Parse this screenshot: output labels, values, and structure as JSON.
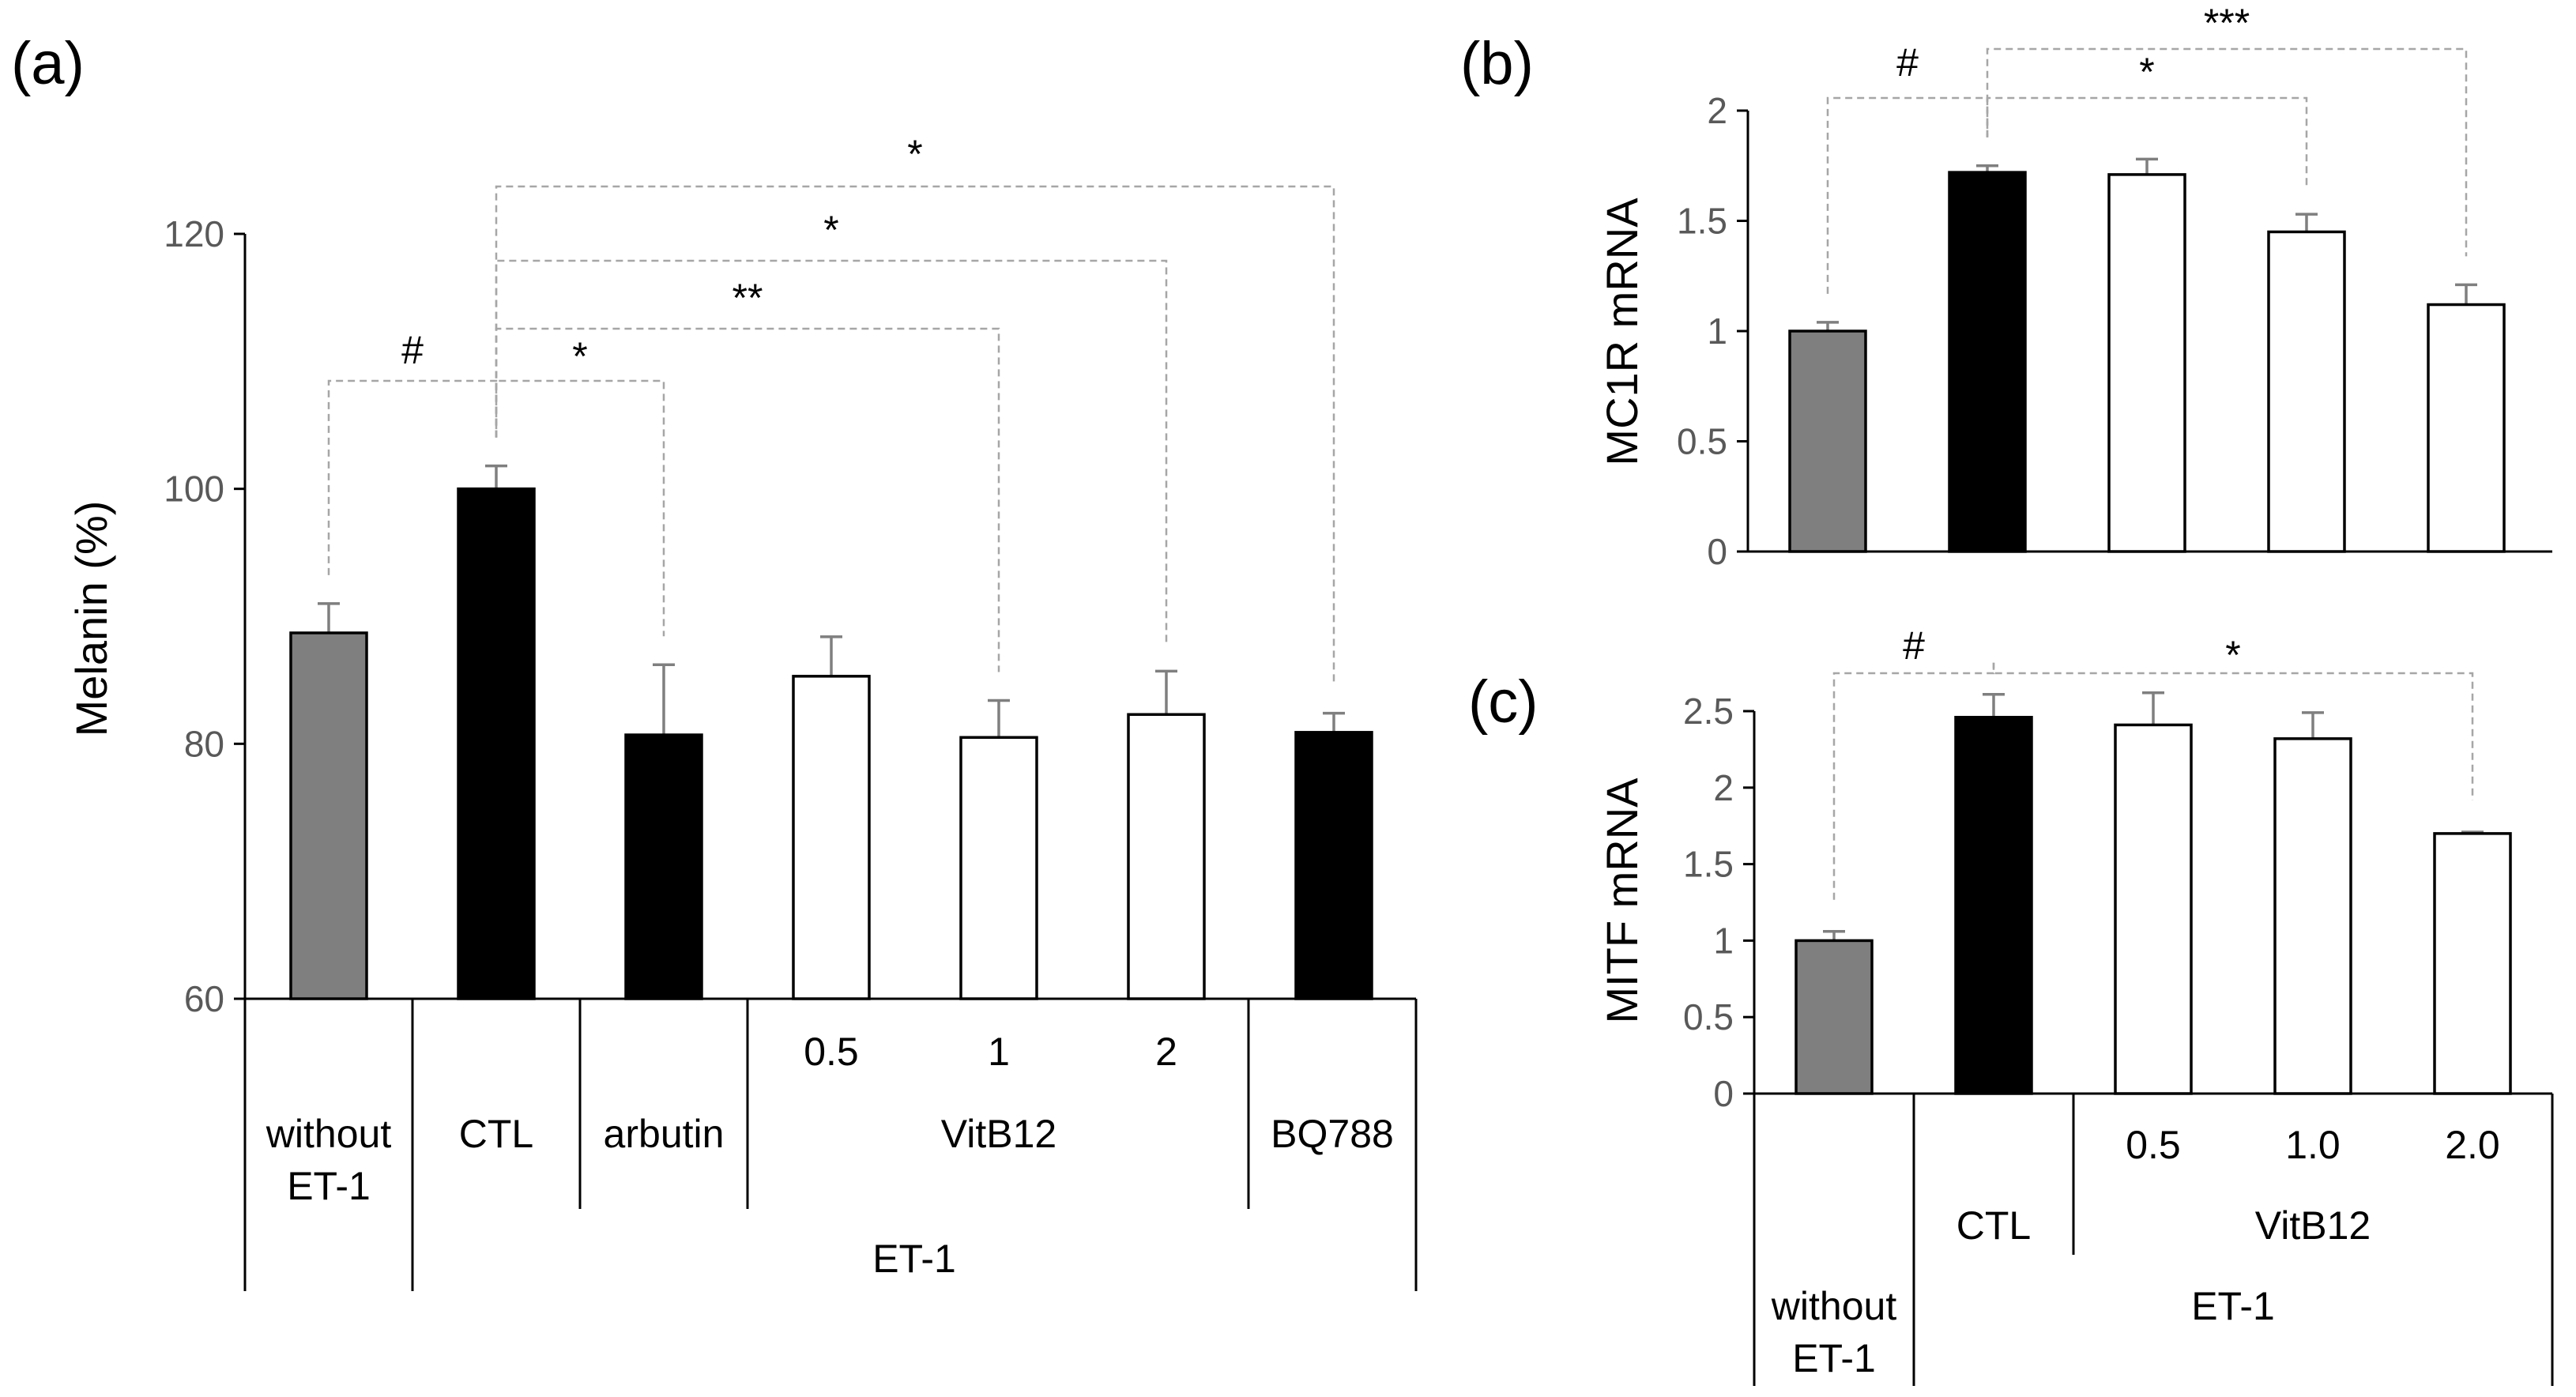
{
  "chart_data": [
    {
      "panel": "(a)",
      "type": "bar",
      "ylabel": "Melanin (%)",
      "ylim": [
        60,
        120
      ],
      "yticks": [
        60,
        80,
        100,
        120
      ],
      "categories": [
        "without ET-1",
        "CTL",
        "arbutin",
        "0.5",
        "1",
        "2",
        "BQ788"
      ],
      "values": [
        88.7,
        100.0,
        80.7,
        85.3,
        80.5,
        82.3,
        80.9
      ],
      "errors": [
        2.3,
        1.8,
        5.5,
        3.1,
        2.9,
        3.4,
        1.5
      ],
      "fills": [
        "#7f7f7f",
        "#000000",
        "#000000",
        "#ffffff",
        "#ffffff",
        "#ffffff",
        "#000000"
      ],
      "group_labels": {
        "without_1": "without",
        "without_2": "ET-1",
        "ctl": "CTL",
        "arbutin": "arbutin",
        "dose_1": "0.5",
        "dose_2": "1",
        "dose_3": "2",
        "vitb12": "VitB12",
        "bq788": "BQ788",
        "et1": "ET-1"
      },
      "significance": [
        {
          "from": "without ET-1",
          "to": "CTL",
          "label": "#"
        },
        {
          "from": "CTL",
          "to": "arbutin",
          "label": "*"
        },
        {
          "from": "CTL",
          "to": "1",
          "label": "**"
        },
        {
          "from": "CTL",
          "to": "2",
          "label": "*"
        },
        {
          "from": "CTL",
          "to": "BQ788",
          "label": "*"
        }
      ]
    },
    {
      "panel": "(b)",
      "type": "bar",
      "ylabel": "MC1R mRNA",
      "ylim": [
        0,
        2
      ],
      "yticks": [
        "0",
        "0.5",
        "1",
        "1.5",
        "2"
      ],
      "categories": [
        "without ET-1",
        "CTL",
        "0.5",
        "1.0",
        "2.0"
      ],
      "values": [
        1.0,
        1.72,
        1.71,
        1.45,
        1.12
      ],
      "errors": [
        0.04,
        0.03,
        0.07,
        0.08,
        0.09
      ],
      "fills": [
        "#7f7f7f",
        "#000000",
        "#ffffff",
        "#ffffff",
        "#ffffff"
      ],
      "significance": [
        {
          "from": "without ET-1",
          "to": "CTL",
          "label": "#"
        },
        {
          "from": "CTL",
          "to": "1.0",
          "label": "*"
        },
        {
          "from": "CTL",
          "to": "2.0",
          "label": "***"
        }
      ]
    },
    {
      "panel": "(c)",
      "type": "bar",
      "ylabel": "MITF mRNA",
      "ylim": [
        0,
        2.5
      ],
      "yticks": [
        "0",
        "0.5",
        "1",
        "1.5",
        "2",
        "2.5"
      ],
      "categories": [
        "without ET-1",
        "CTL",
        "0.5",
        "1.0",
        "2.0"
      ],
      "values": [
        1.0,
        2.46,
        2.41,
        2.32,
        1.7
      ],
      "errors": [
        0.06,
        0.15,
        0.21,
        0.17,
        0.01
      ],
      "fills": [
        "#7f7f7f",
        "#000000",
        "#ffffff",
        "#ffffff",
        "#ffffff"
      ],
      "group_labels": {
        "dose_1": "0.5",
        "dose_2": "1.0",
        "dose_3": "2.0",
        "ctl": "CTL",
        "vitb12": "VitB12",
        "without_1": "without",
        "without_2": "ET-1",
        "et1": "ET-1"
      },
      "significance": [
        {
          "from": "without ET-1",
          "to": "CTL",
          "label": "#"
        },
        {
          "from": "CTL",
          "to": "2.0",
          "label": "*"
        }
      ]
    }
  ]
}
